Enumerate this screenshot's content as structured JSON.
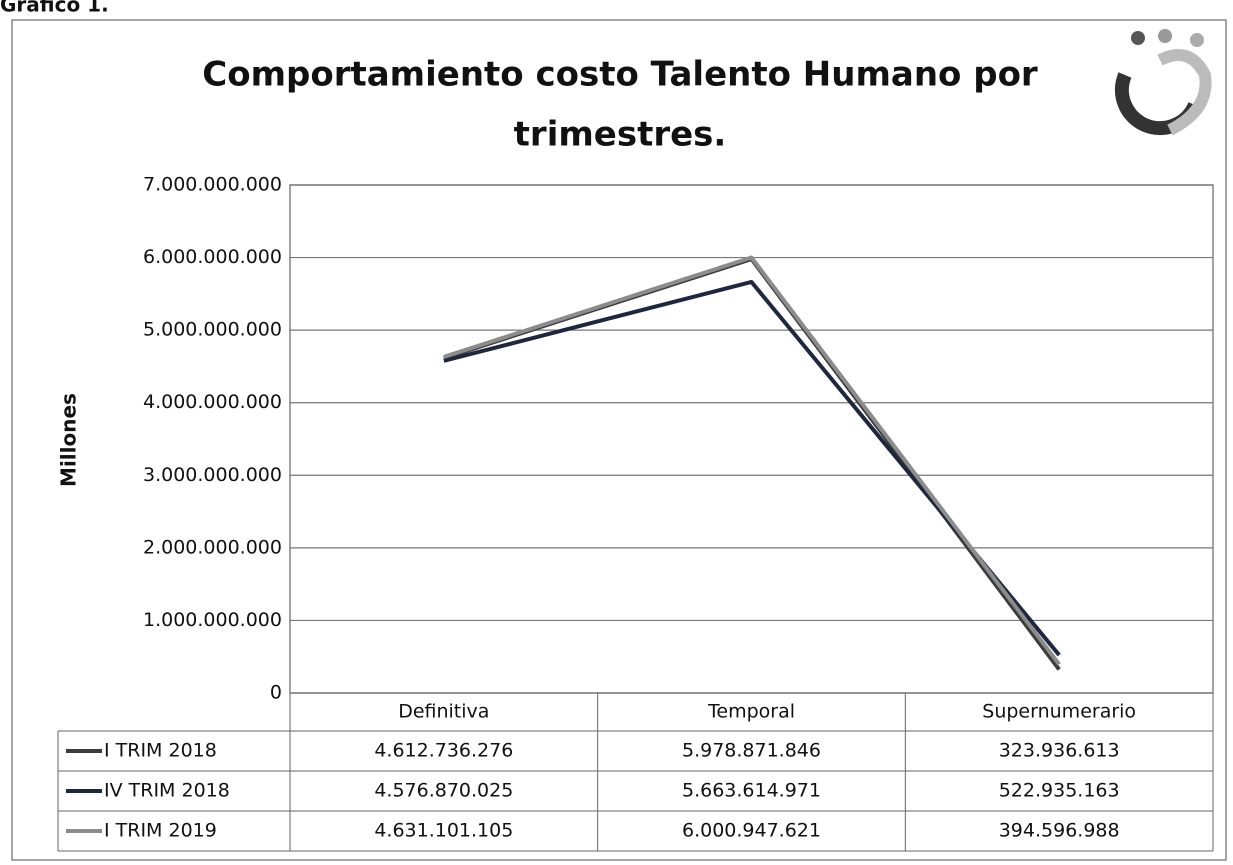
{
  "caption": "Gráfico 1.",
  "chart_data": {
    "type": "line",
    "title": "Comportamiento costo Talento Humano por trimestres.",
    "title_lines": [
      "Comportamiento costo Talento Humano por",
      "trimestres."
    ],
    "y_label": "Millones",
    "categories": [
      "Definitiva",
      "Temporal",
      "Supernumerario"
    ],
    "series": [
      {
        "name": "I TRIM 2018",
        "color": "#3c3c3c",
        "values": [
          4612736276,
          5978871846,
          323936613
        ],
        "value_labels": [
          "4.612.736.276",
          "5.978.871.846",
          "323.936.613"
        ]
      },
      {
        "name": "IV TRIM 2018",
        "color": "#1e2740",
        "values": [
          4576870025,
          5663614971,
          522935163
        ],
        "value_labels": [
          "4.576.870.025",
          "5.663.614.971",
          "522.935.163"
        ]
      },
      {
        "name": "I TRIM 2019",
        "color": "#8c8c8c",
        "values": [
          4631101105,
          6000947621,
          394596988
        ],
        "value_labels": [
          "4.631.101.105",
          "6.000.947.621",
          "394.596.988"
        ]
      }
    ],
    "ylim": [
      0,
      7000000000
    ],
    "yticks": [
      0,
      {
        "value": 1000000000,
        "label": "1.000.000.000"
      },
      {
        "value": 2000000000,
        "label": "2.000.000.000"
      },
      {
        "value": 3000000000,
        "label": "3.000.000.000"
      },
      {
        "value": 4000000000,
        "label": "4.000.000.000"
      },
      {
        "value": 5000000000,
        "label": "5.000.000.000"
      },
      {
        "value": 6000000000,
        "label": "6.000.000.000"
      },
      {
        "value": 7000000000,
        "label": "7.000.000.000"
      }
    ],
    "grid": true
  }
}
